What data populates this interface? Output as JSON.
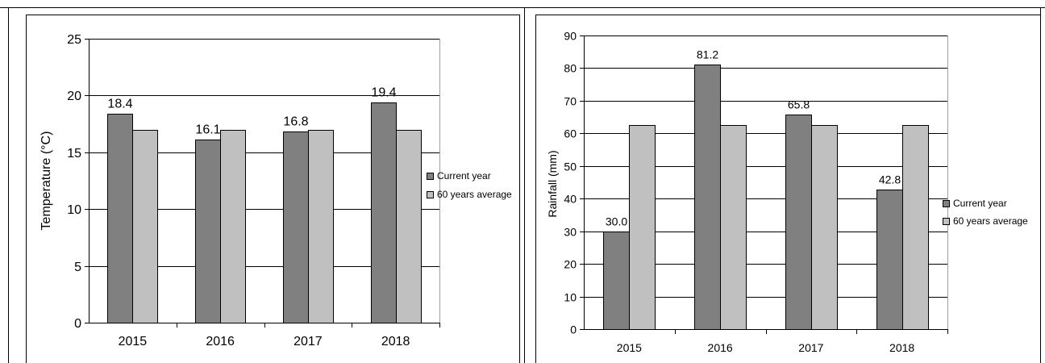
{
  "colors": {
    "current_year": "#808080",
    "average": "#c0c0c0",
    "grid": "#000000",
    "background": "#ffffff"
  },
  "chart_data": [
    {
      "type": "bar",
      "categories": [
        "2015",
        "2016",
        "2017",
        "2018"
      ],
      "series": [
        {
          "name": "Current year",
          "values": [
            18.4,
            16.1,
            16.8,
            19.4
          ]
        },
        {
          "name": "60 years average",
          "values": [
            17.0,
            17.0,
            17.0,
            17.0
          ]
        }
      ],
      "data_labels": [
        "18.4",
        "16.1",
        "16.8",
        "19.4"
      ],
      "title": "",
      "xlabel": "",
      "ylabel": "Temperature (°C)",
      "ylim": [
        0,
        25
      ],
      "yticks": [
        "0",
        "5",
        "10",
        "15",
        "20",
        "25"
      ],
      "grid": true,
      "legend": "right"
    },
    {
      "type": "bar",
      "categories": [
        "2015",
        "2016",
        "2017",
        "2018"
      ],
      "series": [
        {
          "name": "Current year",
          "values": [
            30.0,
            81.2,
            65.8,
            42.8
          ]
        },
        {
          "name": "60 years average",
          "values": [
            62.5,
            62.5,
            62.5,
            62.5
          ]
        }
      ],
      "data_labels": [
        "30.0",
        "81.2",
        "65.8",
        "42.8"
      ],
      "title": "",
      "xlabel": "",
      "ylabel": "Rainfall (mm)",
      "ylim": [
        0,
        90
      ],
      "yticks": [
        "0",
        "10",
        "20",
        "30",
        "40",
        "50",
        "60",
        "70",
        "80",
        "90"
      ],
      "grid": true,
      "legend": "right"
    }
  ]
}
